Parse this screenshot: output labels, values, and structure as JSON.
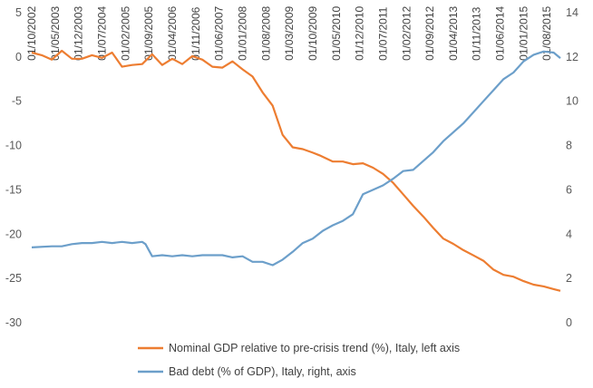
{
  "chart_data": {
    "type": "line",
    "title": "",
    "left_axis": {
      "ylim": [
        -30,
        5
      ],
      "ticks": [
        5,
        0,
        -5,
        -10,
        -15,
        -20,
        -25,
        -30
      ]
    },
    "right_axis": {
      "ylim": [
        0,
        14
      ],
      "ticks": [
        14,
        12,
        10,
        8,
        6,
        4,
        2,
        0
      ]
    },
    "grid": false,
    "legend_position": "bottom",
    "x_ticks": [
      "01/10/2002",
      "01/05/2003",
      "01/12/2003",
      "01/07/2004",
      "01/02/2005",
      "01/09/2005",
      "01/04/2006",
      "01/11/2006",
      "01/06/2007",
      "01/01/2008",
      "01/08/2008",
      "01/03/2009",
      "01/10/2009",
      "01/05/2010",
      "01/12/2010",
      "01/07/2011",
      "01/02/2012",
      "01/09/2012",
      "01/04/2013",
      "01/11/2013",
      "01/06/2014",
      "01/01/2015",
      "01/08/2015"
    ],
    "x_range": [
      "2002-10",
      "2015-12"
    ],
    "series": [
      {
        "name": "Nominal GDP relative to pre-crisis trend (%), Italy, left axis",
        "axis": "left",
        "color": "#ED7D31",
        "points": [
          [
            "2002-10",
            0.5
          ],
          [
            "2003-01",
            0.2
          ],
          [
            "2003-04",
            -0.3
          ],
          [
            "2003-07",
            0.7
          ],
          [
            "2003-10",
            -0.2
          ],
          [
            "2004-01",
            -0.2
          ],
          [
            "2004-04",
            0.2
          ],
          [
            "2004-07",
            -0.1
          ],
          [
            "2004-10",
            0.5
          ],
          [
            "2005-01",
            -1.1
          ],
          [
            "2005-04",
            -0.9
          ],
          [
            "2005-07",
            -0.8
          ],
          [
            "2005-10",
            0.3
          ],
          [
            "2006-01",
            -0.9
          ],
          [
            "2006-04",
            -0.2
          ],
          [
            "2006-07",
            -0.8
          ],
          [
            "2006-10",
            0.1
          ],
          [
            "2007-01",
            -0.3
          ],
          [
            "2007-04",
            -1.1
          ],
          [
            "2007-07",
            -1.2
          ],
          [
            "2007-10",
            -0.5
          ],
          [
            "2008-01",
            -1.4
          ],
          [
            "2008-04",
            -2.2
          ],
          [
            "2008-07",
            -4
          ],
          [
            "2008-10",
            -5.5
          ],
          [
            "2009-01",
            -8.8
          ],
          [
            "2009-04",
            -10.2
          ],
          [
            "2009-07",
            -10.4
          ],
          [
            "2009-10",
            -10.8
          ],
          [
            "2009-12",
            -11.1
          ],
          [
            "2010-04",
            -11.8
          ],
          [
            "2010-07",
            -11.8
          ],
          [
            "2010-10",
            -12.1
          ],
          [
            "2011-01",
            -12
          ],
          [
            "2011-04",
            -12.5
          ],
          [
            "2011-07",
            -13.2
          ],
          [
            "2011-10",
            -14.2
          ],
          [
            "2012-01",
            -15.5
          ],
          [
            "2012-04",
            -16.8
          ],
          [
            "2012-07",
            -18
          ],
          [
            "2012-10",
            -19.3
          ],
          [
            "2013-01",
            -20.5
          ],
          [
            "2013-04",
            -21.1
          ],
          [
            "2013-07",
            -21.8
          ],
          [
            "2013-10",
            -22.4
          ],
          [
            "2014-01",
            -23
          ],
          [
            "2014-04",
            -24
          ],
          [
            "2014-07",
            -24.6
          ],
          [
            "2014-10",
            -24.8
          ],
          [
            "2015-01",
            -25.3
          ],
          [
            "2015-04",
            -25.7
          ],
          [
            "2015-07",
            -25.9
          ],
          [
            "2015-10",
            -26.2
          ],
          [
            "2015-12",
            -26.4
          ]
        ]
      },
      {
        "name": "Bad debt (% of GDP), Italy, right, axis",
        "axis": "right",
        "color": "#6C9FCA",
        "points": [
          [
            "2002-10",
            3.4
          ],
          [
            "2003-04",
            3.45
          ],
          [
            "2003-07",
            3.45
          ],
          [
            "2003-10",
            3.55
          ],
          [
            "2004-01",
            3.6
          ],
          [
            "2004-04",
            3.6
          ],
          [
            "2004-07",
            3.65
          ],
          [
            "2004-10",
            3.6
          ],
          [
            "2005-01",
            3.65
          ],
          [
            "2005-04",
            3.6
          ],
          [
            "2005-07",
            3.65
          ],
          [
            "2005-08",
            3.55
          ],
          [
            "2005-10",
            3.0
          ],
          [
            "2006-01",
            3.05
          ],
          [
            "2006-04",
            3.0
          ],
          [
            "2006-07",
            3.05
          ],
          [
            "2006-10",
            3.0
          ],
          [
            "2007-01",
            3.05
          ],
          [
            "2007-04",
            3.05
          ],
          [
            "2007-07",
            3.05
          ],
          [
            "2007-10",
            2.95
          ],
          [
            "2008-01",
            3.0
          ],
          [
            "2008-04",
            2.75
          ],
          [
            "2008-07",
            2.75
          ],
          [
            "2008-10",
            2.6
          ],
          [
            "2009-01",
            2.85
          ],
          [
            "2009-04",
            3.2
          ],
          [
            "2009-07",
            3.6
          ],
          [
            "2009-10",
            3.8
          ],
          [
            "2010-01",
            4.15
          ],
          [
            "2010-04",
            4.4
          ],
          [
            "2010-07",
            4.6
          ],
          [
            "2010-10",
            4.9
          ],
          [
            "2011-01",
            5.8
          ],
          [
            "2011-04",
            6.0
          ],
          [
            "2011-07",
            6.2
          ],
          [
            "2011-10",
            6.5
          ],
          [
            "2012-01",
            6.85
          ],
          [
            "2012-04",
            6.9
          ],
          [
            "2012-07",
            7.3
          ],
          [
            "2012-10",
            7.7
          ],
          [
            "2013-01",
            8.2
          ],
          [
            "2013-04",
            8.6
          ],
          [
            "2013-07",
            9.0
          ],
          [
            "2013-10",
            9.5
          ],
          [
            "2014-01",
            10.0
          ],
          [
            "2014-04",
            10.5
          ],
          [
            "2014-07",
            11.0
          ],
          [
            "2014-10",
            11.3
          ],
          [
            "2015-01",
            11.8
          ],
          [
            "2015-04",
            12.1
          ],
          [
            "2015-07",
            12.25
          ],
          [
            "2015-10",
            12.2
          ],
          [
            "2015-12",
            11.95
          ]
        ]
      }
    ]
  }
}
